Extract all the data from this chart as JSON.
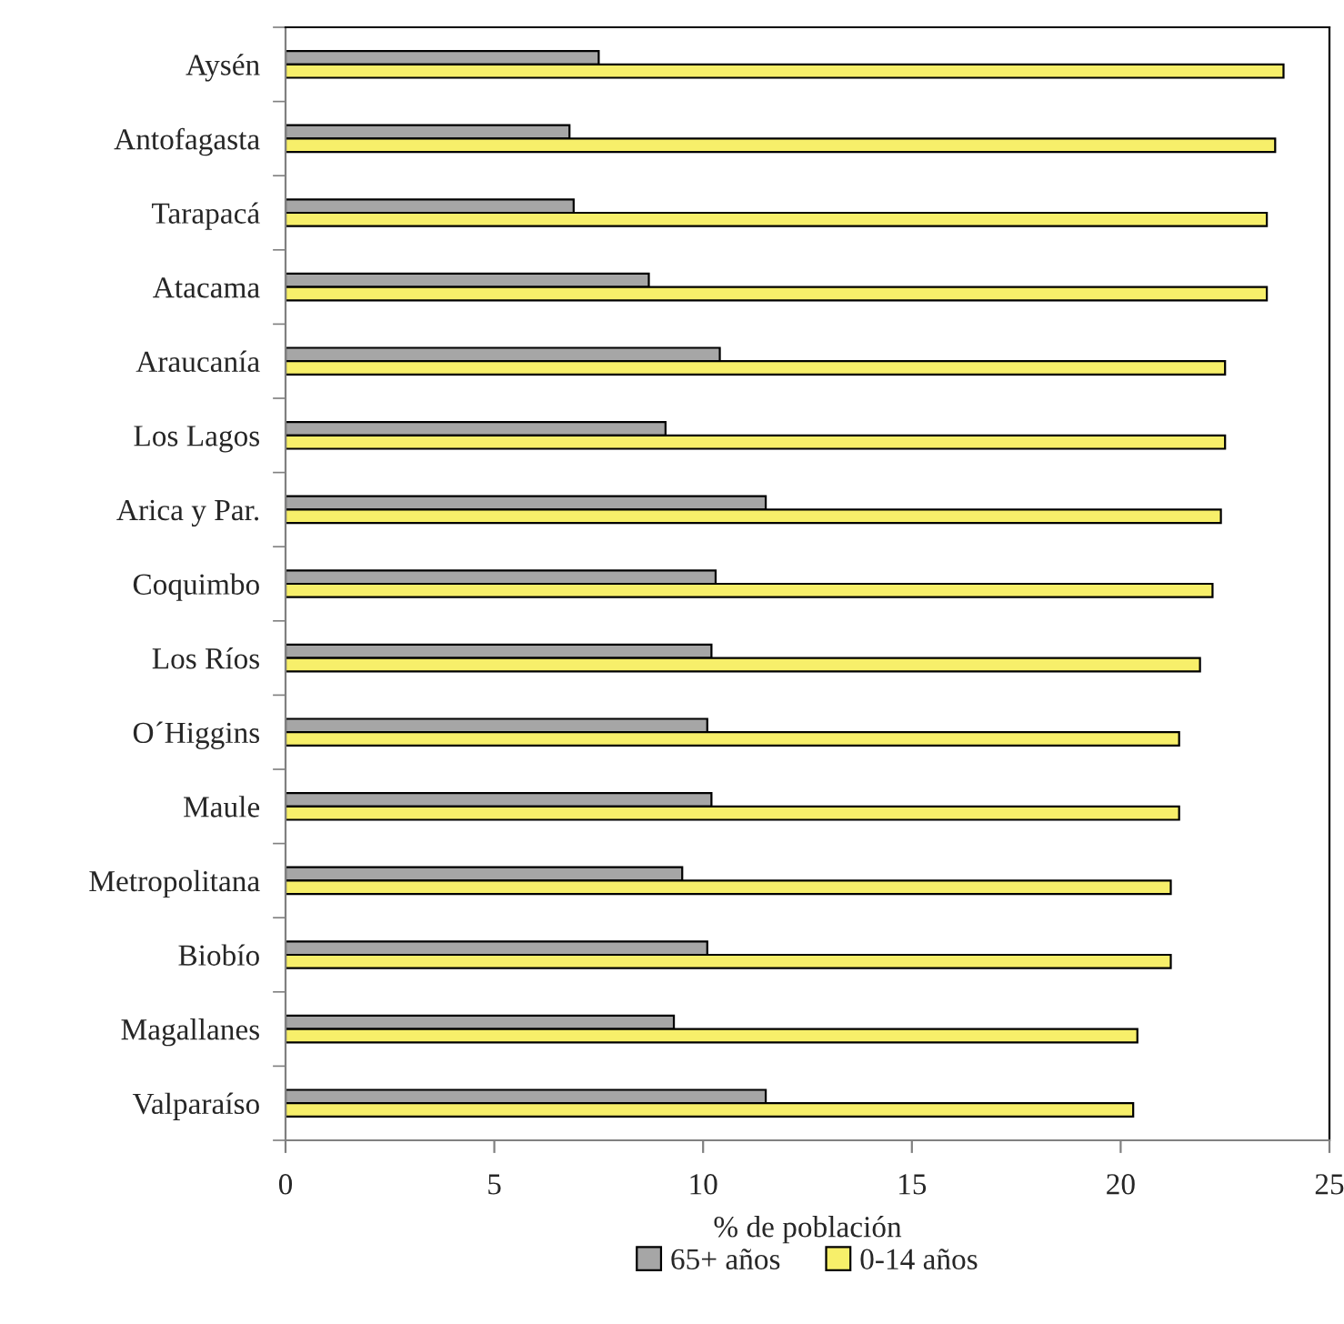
{
  "chart_data": {
    "type": "bar",
    "orientation": "horizontal",
    "xlabel": "% de población",
    "categories": [
      "Aysén",
      "Antofagasta",
      "Tarapacá",
      "Atacama",
      "Araucanía",
      "Los Lagos",
      "Arica y Par.",
      "Coquimbo",
      "Los Ríos",
      "O´Higgins",
      "Maule",
      "Metropolitana",
      "Biobío",
      "Magallanes",
      "Valparaíso"
    ],
    "series": [
      {
        "name": "65+ años",
        "color": "#a6a6a6",
        "values": [
          7.5,
          6.8,
          6.9,
          8.7,
          10.4,
          9.1,
          11.5,
          10.3,
          10.2,
          10.1,
          10.2,
          9.5,
          10.1,
          9.3,
          11.5
        ]
      },
      {
        "name": "0-14 años",
        "color": "#f7ef6a",
        "values": [
          23.9,
          23.7,
          23.5,
          23.5,
          22.5,
          22.5,
          22.4,
          22.2,
          21.9,
          21.4,
          21.4,
          21.2,
          21.2,
          20.4,
          20.3
        ]
      }
    ],
    "xlim": [
      0,
      25
    ],
    "xticks": [
      0,
      5,
      10,
      15,
      20,
      25
    ],
    "grid": false,
    "legend": "bottom"
  }
}
